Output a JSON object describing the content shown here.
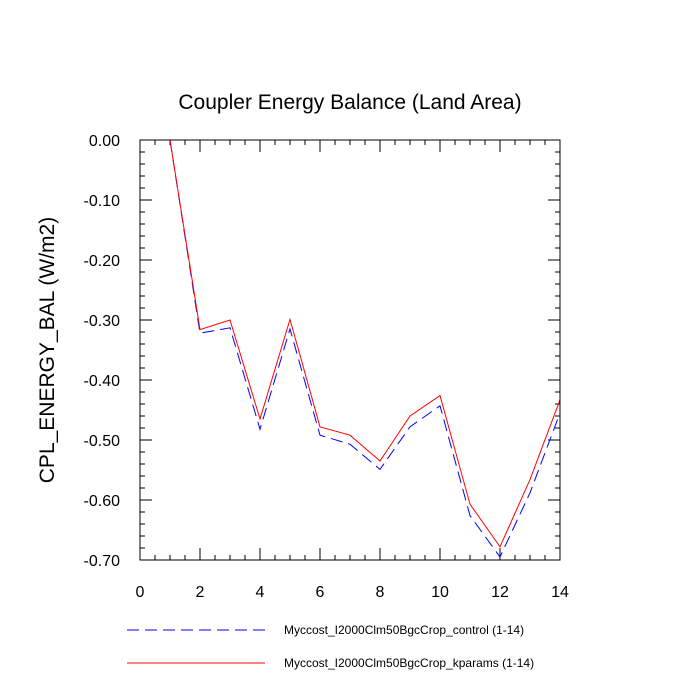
{
  "chart_data": {
    "type": "line",
    "title": "Coupler Energy Balance (Land Area)",
    "xlabel": "",
    "ylabel": "CPL_ENERGY_BAL  (W/m2)",
    "xlim": [
      0,
      14
    ],
    "ylim": [
      -0.7,
      0.0
    ],
    "x_ticks": [
      0,
      2,
      4,
      6,
      8,
      10,
      12,
      14
    ],
    "x_tick_labels": [
      "0",
      "2",
      "4",
      "6",
      "8",
      "10",
      "12",
      "14"
    ],
    "y_ticks": [
      0.0,
      -0.1,
      -0.2,
      -0.3,
      -0.4,
      -0.5,
      -0.6,
      -0.7
    ],
    "y_tick_labels": [
      "0.00",
      "-0.10",
      "-0.20",
      "-0.30",
      "-0.40",
      "-0.50",
      "-0.60",
      "-0.70"
    ],
    "x": [
      1,
      2,
      3,
      4,
      5,
      6,
      7,
      8,
      9,
      10,
      11,
      12,
      13,
      14
    ],
    "series": [
      {
        "name": "Myccost_I2000Clm50BgcCrop_control (1-14)",
        "color": "#0000ff",
        "dash": "dashed",
        "values": [
          0.0,
          -0.322,
          -0.313,
          -0.482,
          -0.315,
          -0.492,
          -0.507,
          -0.549,
          -0.478,
          -0.443,
          -0.626,
          -0.695,
          -0.588,
          -0.455
        ]
      },
      {
        "name": "Myccost_I2000Clm50BgcCrop_kparams (1-14)",
        "color": "#ff0000",
        "dash": "solid",
        "values": [
          0.0,
          -0.316,
          -0.3,
          -0.465,
          -0.299,
          -0.478,
          -0.492,
          -0.535,
          -0.46,
          -0.426,
          -0.607,
          -0.678,
          -0.566,
          -0.433
        ]
      }
    ],
    "legend_position": "bottom"
  }
}
